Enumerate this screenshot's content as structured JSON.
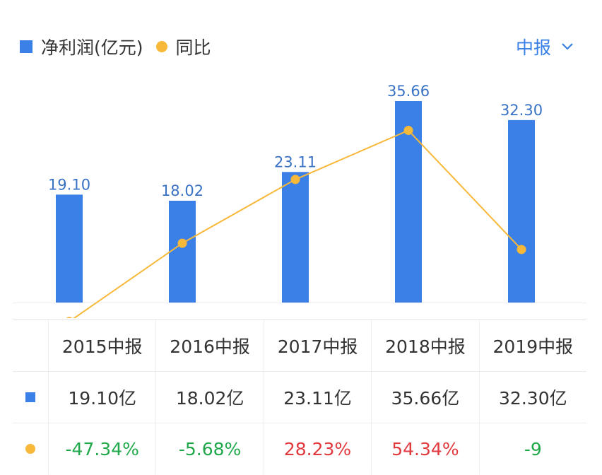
{
  "legend": {
    "bar_label": "净利润(亿元)",
    "line_label": "同比"
  },
  "period_selector": {
    "label": "中报"
  },
  "colors": {
    "bar": "#3a80e6",
    "line": "#f8b83a",
    "positive": "#e0393e",
    "negative": "#20a84a"
  },
  "chart_data": {
    "type": "bar",
    "categories": [
      "2015中报",
      "2016中报",
      "2017中报",
      "2018中报",
      "2019中报"
    ],
    "series": [
      {
        "name": "净利润(亿元)",
        "type": "bar",
        "values": [
          19.1,
          18.02,
          23.11,
          35.66,
          32.3
        ],
        "labels": [
          "19.10",
          "18.02",
          "23.11",
          "35.66",
          "32.30"
        ]
      },
      {
        "name": "同比",
        "type": "line",
        "values": [
          -47.34,
          -5.68,
          28.23,
          54.34,
          -9
        ]
      }
    ]
  },
  "table": {
    "headers": [
      "2015中报",
      "2016中报",
      "2017中报",
      "2018中报",
      "2019中报"
    ],
    "profit_row": [
      "19.10亿",
      "18.02亿",
      "23.11亿",
      "35.66亿",
      "32.30亿"
    ],
    "yoy_row": [
      "-47.34%",
      "-5.68%",
      "28.23%",
      "54.34%",
      "-9"
    ]
  }
}
